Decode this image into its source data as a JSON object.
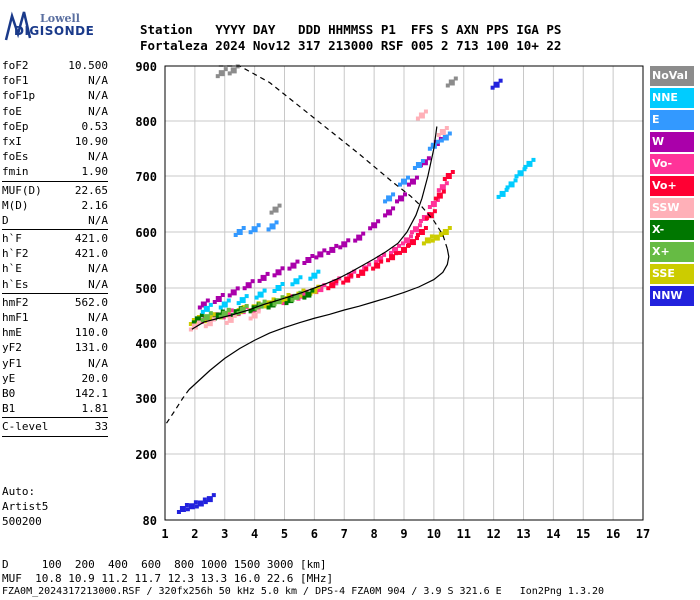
{
  "logo": {
    "line1": "Lowell",
    "line2": "DIGISONDE"
  },
  "header": {
    "row1": "Station   YYYY DAY   DDD HHMMSS P1  FFS S AXN PPS IGA PS",
    "row2": "Fortaleza 2024 Nov12 317 213000 RSF 005 2 713 100 10+ 22"
  },
  "params": {
    "group1": [
      {
        "k": "foF2",
        "v": "10.500"
      },
      {
        "k": "foF1",
        "v": "N/A"
      },
      {
        "k": "foF1p",
        "v": "N/A"
      },
      {
        "k": "foE",
        "v": "N/A"
      },
      {
        "k": "foEp",
        "v": "0.53"
      },
      {
        "k": "fxI",
        "v": "10.90"
      },
      {
        "k": "foEs",
        "v": "N/A"
      },
      {
        "k": "fmin",
        "v": "1.90"
      }
    ],
    "group2": [
      {
        "k": "MUF(D)",
        "v": "22.65"
      },
      {
        "k": "M(D)",
        "v": "2.16"
      },
      {
        "k": "D",
        "v": "N/A"
      }
    ],
    "group3": [
      {
        "k": "h`F",
        "v": "421.0"
      },
      {
        "k": "h`F2",
        "v": "421.0"
      },
      {
        "k": "h`E",
        "v": "N/A"
      },
      {
        "k": "h`Es",
        "v": "N/A"
      }
    ],
    "group4": [
      {
        "k": "hmF2",
        "v": "562.0"
      },
      {
        "k": "hmF1",
        "v": "N/A"
      },
      {
        "k": "hmE",
        "v": "110.0"
      },
      {
        "k": "yF2",
        "v": "131.0"
      },
      {
        "k": "yF1",
        "v": "N/A"
      },
      {
        "k": "yE",
        "v": "20.0"
      },
      {
        "k": "B0",
        "v": "142.1"
      },
      {
        "k": "B1",
        "v": "1.81"
      }
    ],
    "group5": [
      {
        "k": "C-level",
        "v": "33"
      }
    ]
  },
  "auto": {
    "line1": "Auto:",
    "line2": "Artist5",
    "line3": "500200"
  },
  "legend": [
    {
      "label": "NoVal",
      "color": "#8c8c8c"
    },
    {
      "label": "NNE",
      "color": "#00ccff"
    },
    {
      "label": "E",
      "color": "#3399ff"
    },
    {
      "label": "W",
      "color": "#aa00aa"
    },
    {
      "label": "Vo-",
      "color": "#ff3399"
    },
    {
      "label": "Vo+",
      "color": "#ff0033"
    },
    {
      "label": "SSW",
      "color": "#ffb0b8"
    },
    {
      "label": "X-",
      "color": "#007700"
    },
    {
      "label": "X+",
      "color": "#66bb44"
    },
    {
      "label": "SSE",
      "color": "#cccc00"
    },
    {
      "label": "NNW",
      "color": "#2222dd"
    }
  ],
  "footer": {
    "line1": "D     100  200  400  600  800 1000 1500 3000 [km]",
    "line2": "MUF  10.8 10.9 11.2 11.7 12.3 13.3 16.0 22.6 [MHz]",
    "line3": "FZA0M_2024317213000.RSF / 320fx256h 50 kHz 5.0 km / DPS-4 FZA0M 904 / 3.9 S 321.6 E   Ion2Png 1.3.20"
  },
  "chart_data": {
    "type": "scatter",
    "xlim": [
      1,
      17
    ],
    "ylim": [
      80,
      900
    ],
    "x_ticks": [
      "1",
      "2",
      "3",
      "4",
      "5",
      "6",
      "7",
      "8",
      "9",
      "10",
      "11",
      "12",
      "13",
      "14",
      "15",
      "16",
      "17"
    ],
    "y_ticks": [
      "80",
      "200",
      "300",
      "400",
      "500",
      "600",
      "700",
      "800",
      "900"
    ],
    "grid": true,
    "series": [
      {
        "name": "Vo-",
        "color": "#ff3399",
        "x": [
          2.2,
          2.6,
          3.1,
          3.6,
          4.1,
          4.6,
          5.1,
          5.6,
          6.2,
          6.7,
          7.2,
          7.7,
          8.2,
          8.7,
          9.1,
          9.4,
          9.7,
          10.0,
          10.3
        ],
        "y": [
          440,
          445,
          452,
          458,
          462,
          470,
          478,
          486,
          498,
          510,
          522,
          535,
          552,
          568,
          585,
          605,
          625,
          650,
          680
        ]
      },
      {
        "name": "Vo+",
        "color": "#ff0033",
        "x": [
          6.6,
          7.1,
          7.6,
          8.1,
          8.6,
          9.0,
          9.3,
          9.6,
          9.9,
          10.2,
          10.5
        ],
        "y": [
          505,
          515,
          527,
          540,
          555,
          568,
          582,
          600,
          630,
          665,
          700
        ]
      },
      {
        "name": "W",
        "color": "#aa00aa",
        "x": [
          2.3,
          2.8,
          3.3,
          3.8,
          4.3,
          4.8,
          5.3,
          5.8,
          6.2,
          6.6,
          7.0,
          7.5,
          8.0,
          8.5,
          8.9,
          9.3,
          9.7,
          10.1
        ],
        "y": [
          470,
          480,
          492,
          505,
          518,
          528,
          540,
          550,
          560,
          568,
          578,
          590,
          612,
          635,
          660,
          690,
          725,
          760
        ]
      },
      {
        "name": "SSE",
        "color": "#cccc00",
        "x": [
          2.0,
          2.5,
          3.0,
          3.5,
          4.0,
          4.5,
          5.0,
          5.5,
          6.0,
          9.8,
          10.1,
          10.4
        ],
        "y": [
          440,
          445,
          452,
          458,
          465,
          472,
          480,
          488,
          495,
          585,
          590,
          600
        ]
      },
      {
        "name": "X-",
        "color": "#007700",
        "x": [
          2.1,
          2.8,
          3.4,
          4.0,
          4.6,
          5.2,
          5.8
        ],
        "y": [
          443,
          450,
          456,
          463,
          470,
          478,
          488
        ]
      },
      {
        "name": "X+",
        "color": "#66bb44",
        "x": [
          2.4,
          3.0,
          3.6,
          4.2,
          4.8,
          5.4
        ],
        "y": [
          447,
          453,
          460,
          468,
          476,
          484
        ]
      },
      {
        "name": "NNE",
        "color": "#00ccff",
        "x": [
          2.4,
          3.0,
          3.6,
          4.2,
          4.8,
          5.4,
          6.0,
          12.3,
          12.6,
          12.9,
          13.2
        ],
        "y": [
          462,
          470,
          478,
          488,
          500,
          512,
          522,
          668,
          685,
          705,
          722
        ]
      },
      {
        "name": "E",
        "color": "#3399ff",
        "x": [
          3.5,
          4.0,
          4.6,
          8.5,
          9.0,
          9.5,
          10.0,
          10.4
        ],
        "y": [
          600,
          605,
          610,
          660,
          690,
          720,
          755,
          770
        ]
      },
      {
        "name": "SSW",
        "color": "#ffb0b8",
        "x": [
          2.0,
          2.5,
          3.2,
          4.0,
          9.6,
          10.3
        ],
        "y": [
          430,
          436,
          442,
          450,
          810,
          780
        ]
      },
      {
        "name": "NNW",
        "color": "#2222dd",
        "x": [
          1.6,
          1.9,
          2.2,
          2.5,
          12.1
        ],
        "y": [
          100,
          105,
          110,
          118,
          866
        ]
      },
      {
        "name": "NoVal",
        "color": "#8c8c8c",
        "x": [
          2.9,
          3.3,
          4.7,
          10.6
        ],
        "y": [
          887,
          892,
          640,
          870
        ]
      }
    ],
    "profile": {
      "x": [
        1.05,
        1.3,
        1.6,
        1.8
      ],
      "y": [
        255,
        275,
        300,
        315
      ],
      "x_solid": [
        1.8,
        2.1,
        2.5,
        3.0,
        3.5,
        4.0,
        4.5,
        5.0,
        5.5,
        6.0,
        6.5,
        7.0,
        7.5,
        8.0,
        8.5,
        9.0,
        9.5,
        10.0,
        10.3,
        10.45,
        10.5,
        10.45
      ],
      "y_solid": [
        315,
        330,
        350,
        372,
        390,
        405,
        418,
        428,
        437,
        445,
        452,
        460,
        467,
        475,
        483,
        492,
        502,
        515,
        528,
        542,
        556,
        570
      ],
      "x_dash_top": [
        10.45,
        10.3,
        10.0,
        9.6,
        9.2,
        8.6,
        7.5,
        6.0,
        4.5,
        3.5,
        2.8
      ],
      "y_dash_top": [
        570,
        595,
        620,
        645,
        665,
        690,
        740,
        805,
        870,
        900,
        905
      ]
    },
    "trace": {
      "x": [
        1.9,
        2.3,
        2.8,
        3.3,
        3.8,
        4.3,
        4.8,
        5.2,
        5.6,
        6.0,
        6.4,
        6.8,
        7.2,
        7.6,
        8.0,
        8.4,
        8.8,
        9.1,
        9.4,
        9.6,
        9.8,
        10.0,
        10.1
      ],
      "y": [
        425,
        438,
        445,
        452,
        460,
        470,
        478,
        485,
        492,
        500,
        508,
        517,
        528,
        540,
        552,
        565,
        580,
        600,
        630,
        660,
        700,
        750,
        790
      ]
    }
  }
}
